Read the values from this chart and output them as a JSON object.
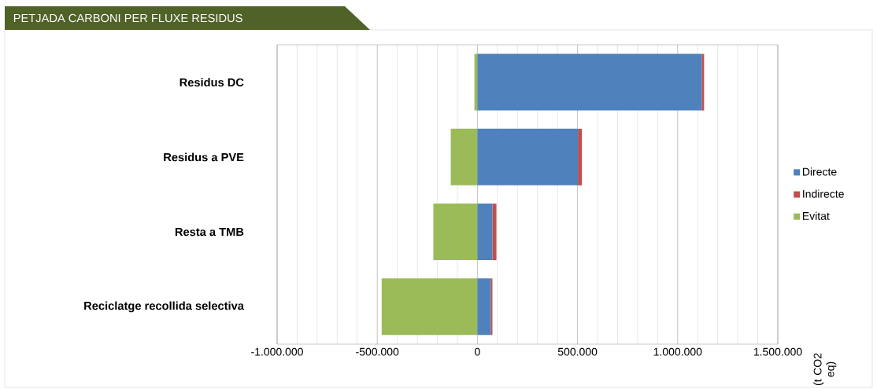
{
  "chart_data": {
    "type": "bar",
    "orientation": "horizontal",
    "stacked": true,
    "title": "PETJADA CARBONI PER FLUXE RESIDUS",
    "annotations": [
      "(t CO2 eq)"
    ],
    "categories": [
      "Residus  DC",
      "Residus a PVE",
      "Resta a TMB",
      "Reciclatge recollida selectiva"
    ],
    "series": [
      {
        "name": "Directe",
        "color": "#4f81bd",
        "values": [
          1120000,
          502000,
          75000,
          67000
        ]
      },
      {
        "name": "Indirecte",
        "color": "#c0504d",
        "values": [
          12000,
          20000,
          20000,
          8000
        ]
      },
      {
        "name": "Evitat",
        "color": "#9bbb59",
        "values": [
          -15000,
          -133000,
          -220000,
          -478000
        ]
      }
    ],
    "xlim": [
      -1000000,
      1500000
    ],
    "xticks": [
      {
        "value": -1000000,
        "label": "-1.000.000"
      },
      {
        "value": -500000,
        "label": "-500.000"
      },
      {
        "value": 0,
        "label": "0"
      },
      {
        "value": 500000,
        "label": "500.000"
      },
      {
        "value": 1000000,
        "label": "1.000.000"
      },
      {
        "value": 1500000,
        "label": "1.500.000"
      }
    ],
    "grid": "x",
    "legend": "right"
  }
}
